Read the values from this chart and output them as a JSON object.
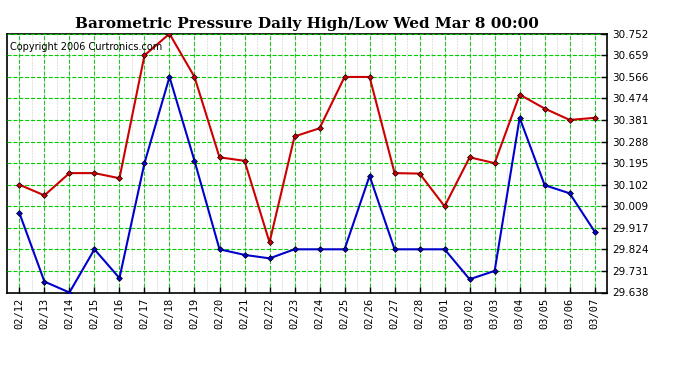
{
  "title": "Barometric Pressure Daily High/Low Wed Mar 8 00:00",
  "copyright": "Copyright 2006 Curtronics.com",
  "dates": [
    "02/12",
    "02/13",
    "02/14",
    "02/15",
    "02/16",
    "02/17",
    "02/18",
    "02/19",
    "02/20",
    "02/21",
    "02/22",
    "02/23",
    "02/24",
    "02/25",
    "02/26",
    "02/27",
    "02/28",
    "03/01",
    "03/02",
    "03/03",
    "03/04",
    "03/05",
    "03/06",
    "03/07"
  ],
  "high": [
    30.102,
    30.056,
    30.152,
    30.152,
    30.13,
    30.659,
    30.752,
    30.566,
    30.22,
    30.205,
    29.854,
    30.31,
    30.345,
    30.566,
    30.566,
    30.152,
    30.15,
    30.009,
    30.22,
    30.195,
    30.49,
    30.43,
    30.381,
    30.39
  ],
  "low": [
    29.98,
    29.685,
    29.638,
    29.824,
    29.7,
    30.195,
    30.566,
    30.205,
    29.824,
    29.8,
    29.785,
    29.824,
    29.824,
    29.824,
    30.14,
    29.824,
    29.824,
    29.824,
    29.695,
    29.731,
    30.39,
    30.1,
    30.065,
    29.9
  ],
  "ylim_min": 29.638,
  "ylim_max": 30.752,
  "yticks": [
    29.638,
    29.731,
    29.824,
    29.917,
    30.009,
    30.102,
    30.195,
    30.288,
    30.381,
    30.474,
    30.566,
    30.659,
    30.752
  ],
  "bg_color": "#ffffff",
  "grid_color": "#00cc00",
  "vgrid_color": "#aaaaaa",
  "high_color": "#cc0000",
  "low_color": "#0000cc",
  "title_color": "#000000",
  "marker": "D",
  "marker_size": 3,
  "line_width": 1.5
}
